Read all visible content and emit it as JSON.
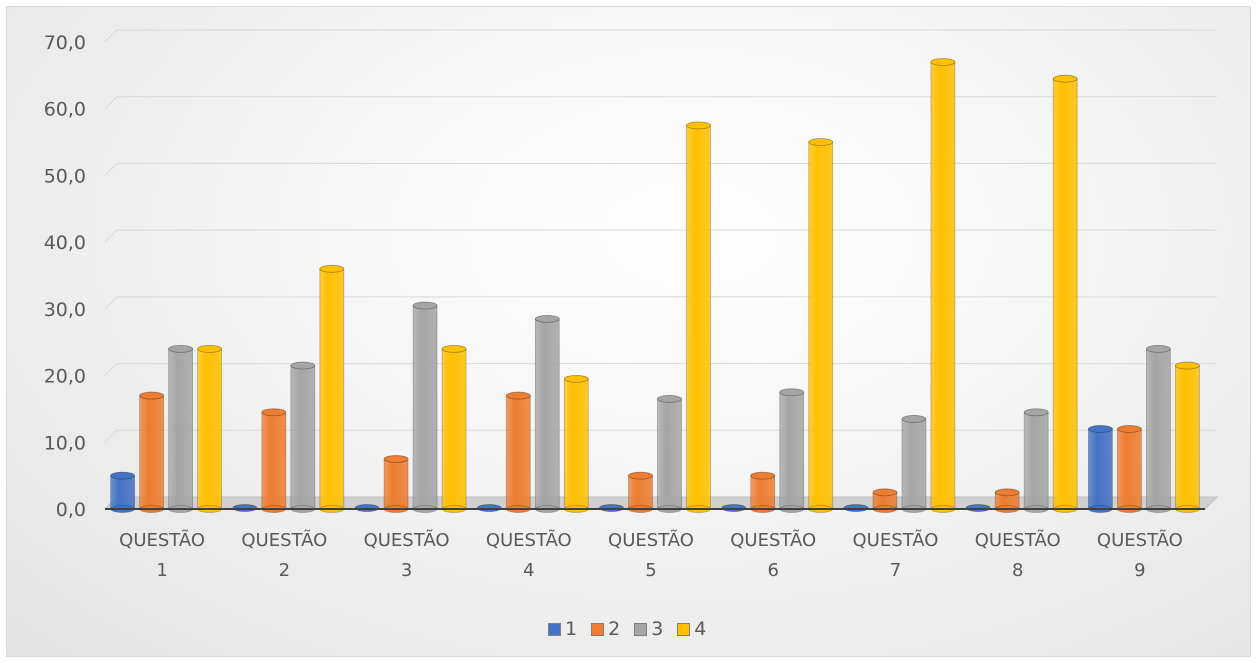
{
  "chart_data": {
    "type": "bar",
    "title": "",
    "xlabel": "",
    "ylabel": "",
    "ylim": [
      0,
      70
    ],
    "yticks": [
      "0,0",
      "10,0",
      "20,0",
      "30,0",
      "40,0",
      "50,0",
      "60,0",
      "70,0"
    ],
    "categories": [
      [
        "QUESTÃO",
        "1"
      ],
      [
        "QUESTÃO",
        "2"
      ],
      [
        "QUESTÃO",
        "3"
      ],
      [
        "QUESTÃO",
        "4"
      ],
      [
        "QUESTÃO",
        "5"
      ],
      [
        "QUESTÃO",
        "6"
      ],
      [
        "QUESTÃO",
        "7"
      ],
      [
        "QUESTÃO",
        "8"
      ],
      [
        "QUESTÃO",
        "9"
      ]
    ],
    "series": [
      {
        "name": "1",
        "color": "#4472c4",
        "values": [
          5.0,
          0.0,
          0.0,
          0.0,
          0.0,
          0.0,
          0.0,
          0.0,
          12.0
        ]
      },
      {
        "name": "2",
        "color": "#ed7d31",
        "values": [
          17.0,
          14.5,
          7.5,
          17.0,
          5.0,
          5.0,
          2.5,
          2.5,
          12.0
        ]
      },
      {
        "name": "3",
        "color": "#a5a5a5",
        "values": [
          24.0,
          21.5,
          30.5,
          28.5,
          16.5,
          17.5,
          13.5,
          14.5,
          24.0
        ]
      },
      {
        "name": "4",
        "color": "#ffc000",
        "values": [
          24.0,
          36.0,
          24.0,
          19.5,
          57.5,
          55.0,
          67.0,
          64.5,
          21.5
        ]
      }
    ],
    "grid": true,
    "legend_position": "bottom"
  }
}
